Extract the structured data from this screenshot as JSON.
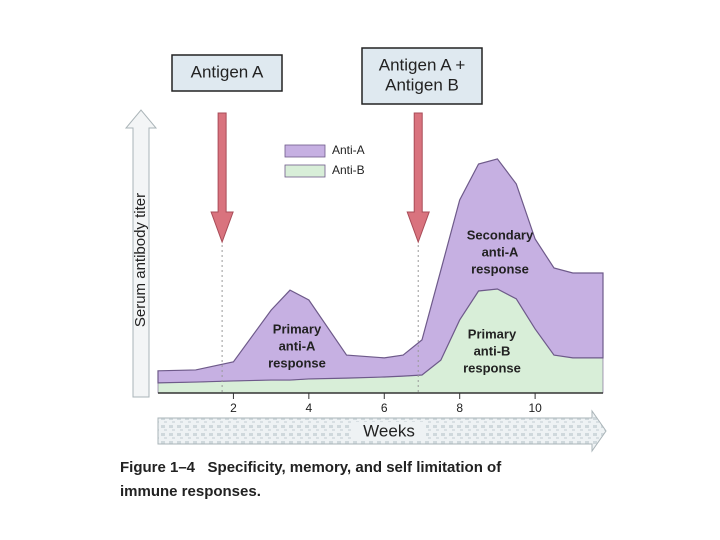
{
  "chart_data": {
    "type": "area",
    "stacked": true,
    "y_label": "Serum antibody titer",
    "x_label": "Weeks",
    "x": [
      0,
      1,
      2,
      3,
      3.5,
      4,
      5,
      6,
      6.5,
      7,
      7.5,
      8,
      8.5,
      9,
      9.5,
      10,
      10.5,
      11,
      11.8
    ],
    "series": [
      {
        "name": "Anti-A",
        "color": "#c6b0e2",
        "values": [
          4.3,
          4.3,
          6.8,
          24.9,
          32,
          28.1,
          8.2,
          6.8,
          7.5,
          12.5,
          32,
          42.7,
          45.2,
          46.3,
          40.9,
          32,
          31,
          30.2,
          30.2
        ]
      },
      {
        "name": "Anti-B",
        "color": "#d8eed8",
        "values": [
          3.6,
          3.9,
          4.3,
          4.6,
          4.6,
          5,
          5.3,
          5.7,
          6,
          6.4,
          11.7,
          26,
          36.3,
          37,
          33.5,
          22.8,
          13.5,
          12.5,
          12.5
        ]
      }
    ],
    "xlim": [
      0,
      11.8
    ],
    "ylim": [
      0,
      100
    ],
    "xticks": [
      2,
      4,
      6,
      8,
      10
    ],
    "antigens": [
      {
        "lines": [
          "Antigen A"
        ],
        "x": 1.7
      },
      {
        "lines": [
          "Antigen A +",
          "Antigen B"
        ],
        "x": 6.9
      }
    ],
    "annotations": [
      {
        "lines": [
          "Primary",
          "anti-A",
          "response"
        ]
      },
      {
        "lines": [
          "Secondary",
          "anti-A",
          "response"
        ]
      },
      {
        "lines": [
          "Primary",
          "anti-B",
          "response"
        ]
      }
    ],
    "caption": [
      "Figure 1–4   Specificity, memory, and self limitation of",
      "immune responses."
    ]
  }
}
